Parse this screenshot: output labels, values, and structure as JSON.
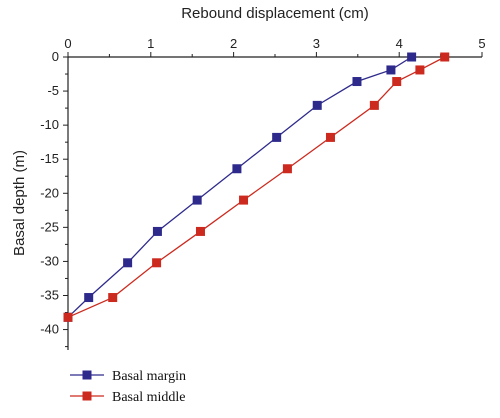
{
  "chart_data": {
    "type": "line",
    "xlabel": "Rebound displacement (cm)",
    "ylabel": "Basal depth (m)",
    "xlim": [
      0,
      5
    ],
    "ylim": [
      -43,
      0
    ],
    "x_ticks": [
      0,
      1,
      2,
      3,
      4,
      5
    ],
    "y_ticks": [
      0,
      -5,
      -10,
      -15,
      -20,
      -25,
      -30,
      -35,
      -40
    ],
    "x_axis_position": "top",
    "grid": false,
    "legend_placement": "bottom-left, below plot",
    "series": [
      {
        "name": "Basal margin",
        "color": "#2e2a8c",
        "marker": "square",
        "points": [
          {
            "x": 0.0,
            "y": -38.2
          },
          {
            "x": 0.25,
            "y": -35.3
          },
          {
            "x": 0.72,
            "y": -30.2
          },
          {
            "x": 1.08,
            "y": -25.6
          },
          {
            "x": 1.56,
            "y": -21.0
          },
          {
            "x": 2.04,
            "y": -16.4
          },
          {
            "x": 2.52,
            "y": -11.8
          },
          {
            "x": 3.01,
            "y": -7.1
          },
          {
            "x": 3.49,
            "y": -3.6
          },
          {
            "x": 3.9,
            "y": -1.9
          },
          {
            "x": 4.15,
            "y": 0.0
          }
        ]
      },
      {
        "name": "Basal middle",
        "color": "#cc2a1e",
        "marker": "square",
        "points": [
          {
            "x": 0.0,
            "y": -38.2
          },
          {
            "x": 0.54,
            "y": -35.3
          },
          {
            "x": 1.07,
            "y": -30.2
          },
          {
            "x": 1.6,
            "y": -25.6
          },
          {
            "x": 2.12,
            "y": -21.0
          },
          {
            "x": 2.65,
            "y": -16.4
          },
          {
            "x": 3.17,
            "y": -11.8
          },
          {
            "x": 3.7,
            "y": -7.1
          },
          {
            "x": 3.97,
            "y": -3.6
          },
          {
            "x": 4.25,
            "y": -1.9
          },
          {
            "x": 4.55,
            "y": 0.0
          }
        ]
      }
    ]
  }
}
